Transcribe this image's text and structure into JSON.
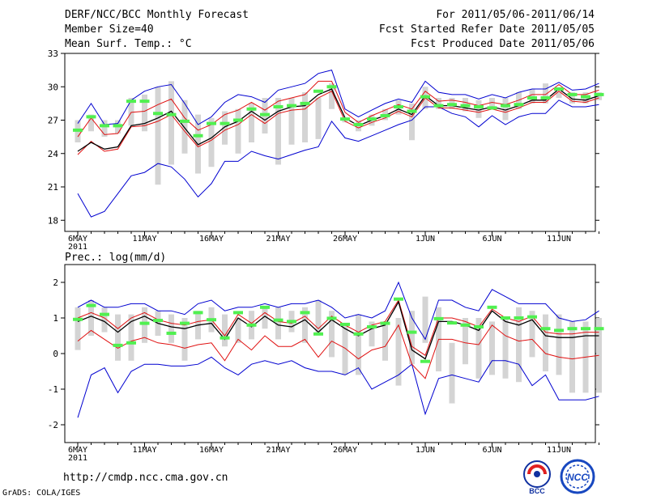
{
  "header": {
    "title": "DERF/NCC/BCC Monthly Forecast",
    "member_size": "Member Size=40",
    "variable": "Mean Surf. Temp.: °C",
    "valid_range": "For 2011/05/06-2011/06/14",
    "start_date": "Fcst Started Refer Date 2011/05/05",
    "produced_date": "Fcst Produced Date 2011/05/06"
  },
  "footer": {
    "url": "http://cmdp.ncc.cma.gov.cn",
    "credit": "GrADS: COLA/IGES",
    "logo_bcc": "BCC",
    "logo_ncc": "NCC"
  },
  "colors": {
    "box": "#d4d4d4",
    "median": "#50f050",
    "mean": "#000000",
    "red": "#e01010",
    "blue": "#0000d0"
  },
  "chart_data": [
    {
      "type": "box-plume",
      "title": "Mean Surf. Temp.: °C",
      "ylabel": "°C",
      "ylim": [
        17,
        33
      ],
      "yticks": [
        18,
        21,
        24,
        27,
        30,
        33
      ],
      "xticks": [
        {
          "day": 0,
          "label": "6MAY",
          "sub": "2011"
        },
        {
          "day": 5,
          "label": "11MAY"
        },
        {
          "day": 10,
          "label": "16MAY"
        },
        {
          "day": 15,
          "label": "21MAY"
        },
        {
          "day": 20,
          "label": "26MAY"
        },
        {
          "day": 26,
          "label": "1JUN"
        },
        {
          "day": 31,
          "label": "6JUN"
        },
        {
          "day": 36,
          "label": "11JUN"
        }
      ],
      "box_low": [
        25.0,
        26.0,
        25.5,
        25.8,
        26.5,
        26.0,
        21.2,
        23.0,
        24.0,
        22.2,
        22.8,
        24.8,
        24.0,
        25.0,
        25.8,
        23.0,
        24.8,
        25.0,
        25.3,
        28.0,
        26.8,
        26.0,
        26.5,
        27.0,
        27.5,
        25.2,
        28.0,
        28.0,
        28.0,
        27.8,
        27.2,
        28.0,
        27.0,
        28.0,
        28.5,
        28.5,
        29.0,
        28.5,
        28.5,
        28.8
      ],
      "box_high": [
        27.0,
        27.5,
        27.0,
        27.0,
        29.0,
        29.3,
        30.0,
        30.5,
        28.8,
        27.5,
        27.2,
        27.8,
        28.0,
        28.5,
        29.0,
        29.0,
        29.0,
        29.5,
        29.0,
        30.3,
        27.2,
        27.0,
        27.5,
        28.0,
        28.8,
        28.5,
        30.0,
        29.0,
        29.0,
        29.0,
        28.8,
        29.0,
        29.0,
        29.5,
        29.8,
        30.3,
        29.5,
        29.5,
        29.5,
        29.5
      ],
      "median": [
        26.1,
        27.3,
        26.5,
        26.5,
        28.7,
        28.7,
        27.6,
        27.5,
        26.9,
        25.6,
        26.7,
        26.7,
        27.0,
        28.0,
        27.5,
        28.2,
        28.3,
        28.5,
        29.6,
        30.0,
        27.1,
        26.6,
        27.1,
        27.4,
        28.2,
        27.8,
        29.1,
        28.3,
        28.4,
        28.3,
        28.2,
        28.1,
        28.3,
        28.4,
        29.0,
        29.0,
        29.8,
        29.3,
        29.1,
        29.3
      ],
      "mean": [
        24.2,
        25.0,
        24.4,
        24.6,
        26.5,
        26.7,
        27.2,
        27.8,
        26.3,
        24.8,
        25.4,
        26.4,
        26.9,
        27.8,
        27.0,
        27.8,
        28.2,
        28.3,
        29.3,
        29.8,
        27.2,
        26.5,
        27.0,
        27.4,
        28.0,
        27.5,
        29.2,
        28.3,
        28.3,
        28.1,
        27.9,
        28.2,
        27.9,
        28.3,
        28.8,
        28.8,
        29.8,
        28.9,
        28.8,
        29.2
      ],
      "red_upper": [
        25.5,
        27.2,
        25.7,
        25.8,
        27.7,
        27.8,
        28.4,
        28.9,
        27.2,
        26.1,
        26.6,
        27.5,
        27.9,
        28.6,
        27.9,
        28.7,
        29.0,
        29.3,
        30.5,
        30.5,
        27.7,
        26.8,
        27.4,
        27.9,
        28.4,
        28.0,
        29.6,
        28.7,
        28.8,
        28.6,
        28.3,
        28.6,
        28.4,
        28.8,
        29.3,
        29.3,
        30.2,
        29.3,
        29.3,
        29.7
      ],
      "red_lower": [
        23.9,
        25.1,
        24.2,
        24.4,
        26.4,
        26.5,
        26.9,
        27.5,
        26.0,
        24.6,
        25.2,
        26.1,
        26.6,
        27.5,
        26.7,
        27.6,
        27.9,
        28.0,
        29.0,
        29.6,
        26.9,
        26.3,
        26.8,
        27.2,
        27.8,
        27.3,
        29.0,
        28.1,
        28.1,
        27.9,
        27.7,
        28.0,
        27.7,
        28.1,
        28.6,
        28.6,
        29.6,
        28.7,
        28.6,
        29.0
      ],
      "max": [
        26.7,
        28.5,
        26.6,
        26.7,
        28.8,
        29.6,
        30.0,
        30.2,
        28.5,
        26.6,
        27.3,
        28.6,
        29.3,
        29.1,
        28.6,
        29.7,
        30.0,
        30.3,
        31.2,
        31.5,
        28.0,
        27.3,
        27.9,
        28.5,
        28.9,
        28.6,
        30.5,
        29.5,
        29.3,
        29.3,
        28.9,
        29.3,
        29.0,
        29.5,
        29.8,
        29.8,
        30.4,
        29.7,
        29.8,
        30.3
      ],
      "min": [
        20.4,
        18.3,
        18.8,
        20.4,
        22.0,
        22.3,
        23.1,
        22.8,
        21.7,
        20.1,
        21.3,
        23.3,
        23.3,
        24.2,
        23.8,
        23.5,
        23.9,
        24.3,
        24.6,
        26.9,
        25.4,
        25.1,
        25.6,
        26.1,
        26.6,
        27.0,
        28.2,
        28.2,
        27.6,
        27.3,
        26.4,
        27.4,
        26.6,
        27.3,
        27.6,
        27.6,
        28.8,
        28.2,
        28.2,
        28.4
      ]
    },
    {
      "type": "box-plume",
      "title": "Prec.: log(mm/d)",
      "ylabel": "log(mm/d)",
      "ylim": [
        -2.5,
        2.5
      ],
      "yticks": [
        -2,
        -1,
        0,
        1,
        2
      ],
      "xticks": [
        {
          "day": 0,
          "label": "6MAY",
          "sub": "2011"
        },
        {
          "day": 5,
          "label": "11MAY"
        },
        {
          "day": 10,
          "label": "16MAY"
        },
        {
          "day": 15,
          "label": "21MAY"
        },
        {
          "day": 20,
          "label": "26MAY"
        },
        {
          "day": 26,
          "label": "1JUN"
        },
        {
          "day": 31,
          "label": "6JUN"
        },
        {
          "day": 36,
          "label": "11JUN"
        }
      ],
      "box_low": [
        0.1,
        0.5,
        0.6,
        -0.2,
        -0.2,
        0.3,
        0.5,
        0.3,
        -0.2,
        0.4,
        0.6,
        0.2,
        0.3,
        0.4,
        0.7,
        0.4,
        0.6,
        0.3,
        0.6,
        -0.1,
        -0.6,
        -0.6,
        0.2,
        -0.2,
        -0.9,
        -0.3,
        0.3,
        -0.5,
        -1.4,
        -0.3,
        -0.7,
        -0.6,
        -0.7,
        -0.8,
        -0.1,
        -0.5,
        -0.6,
        -1.1,
        -1.1,
        -1.1
      ],
      "box_high": [
        1.3,
        1.5,
        1.3,
        1.1,
        1.1,
        1.3,
        1.2,
        1.1,
        1.0,
        1.2,
        1.3,
        1.1,
        1.0,
        1.2,
        1.3,
        1.3,
        1.2,
        1.3,
        1.5,
        1.2,
        0.8,
        1.1,
        0.9,
        0.8,
        1.0,
        1.2,
        1.6,
        1.3,
        0.3,
        1.0,
        1.0,
        0.9,
        1.0,
        1.3,
        1.2,
        1.1,
        1.1,
        0.9,
        0.9,
        1.0
      ],
      "median": [
        0.96,
        1.35,
        1.1,
        0.23,
        0.3,
        0.85,
        0.93,
        0.57,
        0.85,
        1.15,
        0.95,
        0.44,
        1.15,
        0.8,
        1.3,
        0.94,
        0.9,
        1.15,
        0.55,
        0.99,
        0.82,
        0.55,
        0.75,
        0.85,
        1.53,
        0.6,
        -0.22,
        0.98,
        0.86,
        0.8,
        0.75,
        1.3,
        1.0,
        1.0,
        1.03,
        0.7,
        0.65,
        0.7,
        0.7,
        0.7
      ],
      "mean": [
        0.9,
        1.05,
        0.9,
        0.6,
        0.9,
        1.05,
        0.85,
        0.75,
        0.7,
        0.8,
        0.85,
        0.4,
        1.0,
        0.75,
        1.05,
        0.8,
        0.75,
        0.95,
        0.6,
        0.95,
        0.7,
        0.5,
        0.7,
        0.8,
        1.45,
        0.1,
        -0.15,
        0.9,
        0.9,
        0.8,
        0.65,
        1.2,
        0.9,
        0.8,
        0.95,
        0.5,
        0.45,
        0.45,
        0.5,
        0.5
      ],
      "red_upper": [
        1.0,
        1.15,
        1.0,
        0.7,
        1.0,
        1.15,
        0.95,
        0.85,
        0.8,
        0.9,
        0.95,
        0.5,
        1.1,
        0.85,
        1.15,
        0.9,
        0.85,
        1.05,
        0.7,
        1.05,
        0.8,
        0.6,
        0.8,
        0.9,
        1.5,
        0.2,
        -0.05,
        1.0,
        1.0,
        0.9,
        0.75,
        1.25,
        1.0,
        0.9,
        1.05,
        0.6,
        0.55,
        0.55,
        0.6,
        0.6
      ],
      "red_lower": [
        0.35,
        0.65,
        0.4,
        0.15,
        0.35,
        0.45,
        0.3,
        0.25,
        0.15,
        0.25,
        0.3,
        -0.2,
        0.4,
        0.1,
        0.5,
        0.2,
        0.2,
        0.4,
        -0.1,
        0.35,
        0.15,
        -0.15,
        0.1,
        0.2,
        0.8,
        -0.3,
        -0.7,
        0.4,
        0.4,
        0.3,
        0.25,
        0.8,
        0.5,
        0.35,
        0.4,
        0.0,
        -0.1,
        -0.15,
        -0.1,
        -0.05
      ],
      "max": [
        1.3,
        1.5,
        1.3,
        1.3,
        1.4,
        1.4,
        1.2,
        1.2,
        1.1,
        1.4,
        1.5,
        1.2,
        1.3,
        1.3,
        1.4,
        1.3,
        1.4,
        1.4,
        1.5,
        1.3,
        1.0,
        1.1,
        1.0,
        1.2,
        2.0,
        1.0,
        0.4,
        1.5,
        1.5,
        1.3,
        1.2,
        1.8,
        1.6,
        1.4,
        1.4,
        1.4,
        1.0,
        0.9,
        0.95,
        1.2
      ],
      "min": [
        -1.8,
        -0.6,
        -0.4,
        -1.1,
        -0.5,
        -0.3,
        -0.3,
        -0.35,
        -0.35,
        -0.3,
        -0.1,
        -0.4,
        -0.6,
        -0.3,
        -0.2,
        -0.3,
        -0.2,
        -0.4,
        -0.5,
        -0.5,
        -0.6,
        -0.4,
        -1.0,
        -0.8,
        -0.6,
        -0.3,
        -1.7,
        -0.7,
        -0.6,
        -0.7,
        -0.8,
        -0.2,
        -0.2,
        -0.3,
        -0.9,
        -0.6,
        -1.3,
        -1.3,
        -1.3,
        -1.2
      ]
    }
  ]
}
